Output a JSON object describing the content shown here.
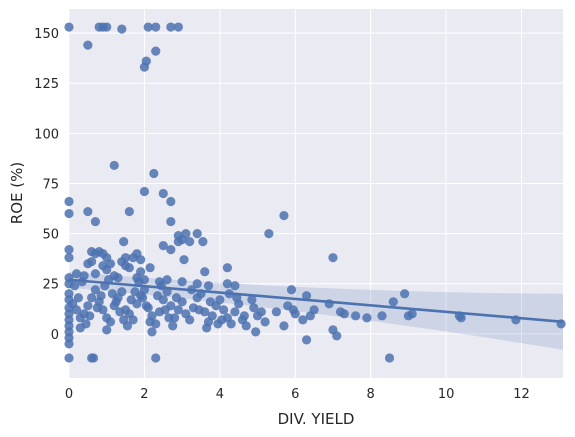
{
  "chart_data": {
    "type": "scatter",
    "title": "",
    "xlabel": "DIV. YIELD",
    "ylabel": "ROE (%)",
    "xlim": [
      0,
      13.1
    ],
    "ylim": [
      -22,
      162
    ],
    "grid": true,
    "x_ticks": [
      0,
      2,
      4,
      6,
      8,
      10,
      12
    ],
    "y_ticks": [
      0,
      25,
      50,
      75,
      100,
      125,
      150
    ],
    "x_tick_labels": [
      "0",
      "2",
      "4",
      "6",
      "8",
      "10",
      "12"
    ],
    "y_tick_labels": [
      "0",
      "25",
      "50",
      "75",
      "100",
      "125",
      "150"
    ],
    "colors": {
      "background": "#eaeaf2",
      "grid": "#ffffff",
      "points": "#4c72b0",
      "line": "#4c72b0",
      "band": "#4c72b0"
    },
    "regression": {
      "slope": -1.6,
      "intercept": 27.0,
      "ci_halfwidth_at_0": 4,
      "ci_halfwidth_at_13": 14
    },
    "points": [
      [
        0,
        153
      ],
      [
        0.8,
        153
      ],
      [
        0.9,
        153
      ],
      [
        1.0,
        153
      ],
      [
        2.1,
        153
      ],
      [
        2.3,
        153
      ],
      [
        2.7,
        153
      ],
      [
        2.9,
        153
      ],
      [
        0.5,
        144
      ],
      [
        1.4,
        152
      ],
      [
        2.3,
        141
      ],
      [
        2.05,
        136
      ],
      [
        2.0,
        133
      ],
      [
        1.2,
        84
      ],
      [
        2.25,
        80
      ],
      [
        2.0,
        71
      ],
      [
        2.5,
        70
      ],
      [
        2.7,
        66
      ],
      [
        0,
        66
      ],
      [
        0,
        60
      ],
      [
        0.5,
        61
      ],
      [
        1.6,
        61
      ],
      [
        5.7,
        59
      ],
      [
        0.7,
        56
      ],
      [
        2.7,
        56
      ],
      [
        2.9,
        49
      ],
      [
        3.1,
        50
      ],
      [
        3.4,
        50
      ],
      [
        2.9,
        46
      ],
      [
        3.0,
        47
      ],
      [
        3.2,
        46
      ],
      [
        3.55,
        46
      ],
      [
        2.5,
        44
      ],
      [
        2.7,
        42
      ],
      [
        5.3,
        50
      ],
      [
        1.45,
        46
      ],
      [
        7.0,
        38
      ],
      [
        3.05,
        37
      ],
      [
        3.6,
        31
      ],
      [
        4.2,
        33
      ],
      [
        2.15,
        33
      ],
      [
        0,
        42
      ],
      [
        0,
        38
      ],
      [
        0.6,
        41
      ],
      [
        0.7,
        40
      ],
      [
        0.8,
        41
      ],
      [
        0.9,
        40
      ],
      [
        1.0,
        38
      ],
      [
        1.1,
        35
      ],
      [
        1.5,
        38
      ],
      [
        1.7,
        38
      ],
      [
        1.8,
        40
      ],
      [
        1.9,
        37
      ],
      [
        0.5,
        35
      ],
      [
        0.6,
        36
      ],
      [
        0.9,
        34
      ],
      [
        1.0,
        32
      ],
      [
        1.4,
        36
      ],
      [
        1.5,
        34
      ],
      [
        1.6,
        33
      ],
      [
        1.9,
        31
      ],
      [
        0.2,
        30
      ],
      [
        0.4,
        29
      ],
      [
        0.7,
        30
      ],
      [
        1.2,
        29
      ],
      [
        1.3,
        28
      ],
      [
        1.8,
        28
      ],
      [
        2.0,
        27
      ],
      [
        2.4,
        26
      ],
      [
        2.6,
        27
      ],
      [
        3.0,
        26
      ],
      [
        3.4,
        25
      ],
      [
        3.7,
        24
      ],
      [
        4.2,
        25
      ],
      [
        4.4,
        24
      ],
      [
        5.9,
        22
      ],
      [
        6.3,
        19
      ],
      [
        8.9,
        20
      ],
      [
        8.6,
        16
      ],
      [
        10.35,
        9
      ],
      [
        10.4,
        8
      ],
      [
        11.85,
        7
      ],
      [
        13.05,
        5
      ],
      [
        9.0,
        9
      ],
      [
        9.1,
        10
      ],
      [
        7.3,
        10
      ],
      [
        7.6,
        9
      ],
      [
        7.9,
        8
      ],
      [
        8.3,
        9
      ],
      [
        7.0,
        2
      ],
      [
        7.1,
        -1
      ],
      [
        6.3,
        -3
      ],
      [
        8.5,
        -12
      ],
      [
        2.3,
        -12
      ],
      [
        0.6,
        -12
      ],
      [
        0.65,
        -12
      ],
      [
        0,
        -12
      ],
      [
        0,
        -5
      ],
      [
        0,
        -2
      ],
      [
        0.1,
        15
      ],
      [
        0.2,
        12
      ],
      [
        0.3,
        8
      ],
      [
        0.4,
        10
      ],
      [
        0.5,
        14
      ],
      [
        0.6,
        18
      ],
      [
        0.7,
        22
      ],
      [
        0.8,
        16
      ],
      [
        0.9,
        12
      ],
      [
        1.0,
        8
      ],
      [
        1.1,
        6
      ],
      [
        1.2,
        14
      ],
      [
        1.3,
        18
      ],
      [
        1.4,
        21
      ],
      [
        1.5,
        12
      ],
      [
        1.6,
        10
      ],
      [
        1.7,
        7
      ],
      [
        1.8,
        15
      ],
      [
        1.9,
        19
      ],
      [
        2.0,
        22
      ],
      [
        2.1,
        13
      ],
      [
        2.2,
        9
      ],
      [
        2.3,
        5
      ],
      [
        2.4,
        11
      ],
      [
        2.5,
        17
      ],
      [
        2.6,
        21
      ],
      [
        2.7,
        14
      ],
      [
        2.8,
        8
      ],
      [
        2.9,
        12
      ],
      [
        3.0,
        16
      ],
      [
        3.1,
        10
      ],
      [
        3.2,
        7
      ],
      [
        3.3,
        13
      ],
      [
        3.4,
        18
      ],
      [
        3.5,
        20
      ],
      [
        3.6,
        11
      ],
      [
        3.7,
        6
      ],
      [
        3.8,
        9
      ],
      [
        3.9,
        14
      ],
      [
        4.0,
        17
      ],
      [
        4.1,
        12
      ],
      [
        4.2,
        8
      ],
      [
        4.3,
        5
      ],
      [
        4.4,
        11
      ],
      [
        4.5,
        15
      ],
      [
        4.6,
        7
      ],
      [
        4.7,
        4
      ],
      [
        4.9,
        13
      ],
      [
        5.0,
        9
      ],
      [
        5.2,
        6
      ],
      [
        5.5,
        11
      ],
      [
        5.8,
        14
      ],
      [
        6.0,
        10
      ],
      [
        6.2,
        7
      ],
      [
        6.5,
        12
      ],
      [
        6.9,
        15
      ],
      [
        7.2,
        11
      ],
      [
        5.7,
        4
      ],
      [
        4.95,
        1
      ],
      [
        3.65,
        3
      ],
      [
        2.2,
        1
      ],
      [
        1.0,
        2
      ],
      [
        0.3,
        3
      ],
      [
        0.45,
        5
      ],
      [
        0.55,
        9
      ],
      [
        0.75,
        13
      ],
      [
        0.85,
        19
      ],
      [
        0.95,
        24
      ],
      [
        1.05,
        27
      ],
      [
        1.15,
        20
      ],
      [
        1.25,
        16
      ],
      [
        1.35,
        11
      ],
      [
        1.45,
        7
      ],
      [
        1.55,
        4
      ],
      [
        1.65,
        17
      ],
      [
        1.75,
        21
      ],
      [
        1.85,
        26
      ],
      [
        1.95,
        18
      ],
      [
        2.05,
        14
      ],
      [
        2.15,
        6
      ],
      [
        2.35,
        19
      ],
      [
        2.45,
        24
      ],
      [
        2.55,
        12
      ],
      [
        2.65,
        8
      ],
      [
        2.75,
        4
      ],
      [
        2.85,
        18
      ],
      [
        3.25,
        22
      ],
      [
        3.45,
        12
      ],
      [
        3.75,
        16
      ],
      [
        3.95,
        5
      ],
      [
        4.05,
        7
      ],
      [
        4.25,
        20
      ],
      [
        4.45,
        18
      ],
      [
        4.65,
        9
      ],
      [
        0.15,
        24
      ],
      [
        0.25,
        18
      ],
      [
        0.35,
        26
      ],
      [
        0,
        28
      ],
      [
        0,
        25
      ],
      [
        0,
        20
      ],
      [
        0,
        17
      ],
      [
        0,
        13
      ],
      [
        0,
        10
      ],
      [
        0,
        7
      ],
      [
        0,
        4
      ],
      [
        0,
        1
      ],
      [
        5.95,
        12
      ],
      [
        6.4,
        9
      ],
      [
        4.85,
        17
      ],
      [
        5.1,
        11
      ]
    ]
  }
}
